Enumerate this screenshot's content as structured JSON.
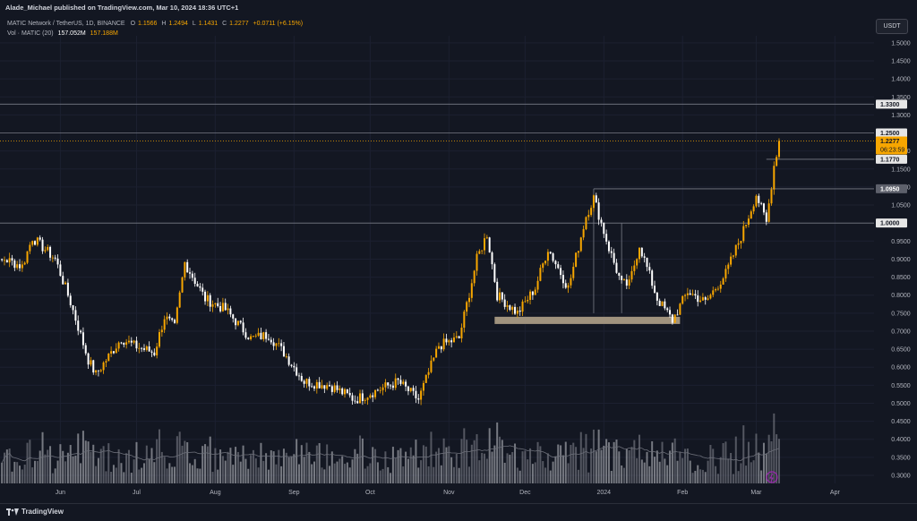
{
  "header": {
    "publisher_text": "Alade_Michael published on TradingView.com, Mar 10, 2024 18:36 UTC+1"
  },
  "legend": {
    "symbol": "MATIC Network / TetherUS, 1D, BINANCE",
    "o_label": "O",
    "o_value": "1.1566",
    "h_label": "H",
    "h_value": "1.2494",
    "l_label": "L",
    "l_value": "1.1431",
    "c_label": "C",
    "c_value": "1.2277",
    "change": "+0.0711 (+6.15%)",
    "vol_label": "Vol · MATIC (20)",
    "vol_value": "157.052M",
    "vol_ma": "157.188M"
  },
  "currency": "USDT",
  "footer": {
    "brand": "TradingView"
  },
  "colors": {
    "background": "#131722",
    "up": "#f7a600",
    "down": "#ffffff",
    "level_line": "#787b86",
    "support_zone": "#a89a84",
    "current_price": "#f7a600"
  },
  "chart_data": {
    "type": "candlestick",
    "y_axis_ticks": [
      "1.5000",
      "1.4500",
      "1.4000",
      "1.3500",
      "1.3000",
      "1.2000",
      "1.1500",
      "1.1000",
      "1.0500",
      "0.9500",
      "0.9000",
      "0.8500",
      "0.8000",
      "0.7500",
      "0.7000",
      "0.6500",
      "0.6000",
      "0.5500",
      "0.5000",
      "0.4500",
      "0.4000",
      "0.3500",
      "0.3000"
    ],
    "x_axis_labels": [
      "Jun",
      "Jul",
      "Aug",
      "Sep",
      "Oct",
      "Nov",
      "Dec",
      "2024",
      "Feb",
      "Mar",
      "Apr"
    ],
    "price_labels": [
      {
        "text": "1.3300",
        "value": 1.33,
        "style": "level"
      },
      {
        "text": "1.2500",
        "value": 1.25,
        "style": "level"
      },
      {
        "text": "1.2277",
        "value": 1.2277,
        "style": "current",
        "countdown": "06:23:59"
      },
      {
        "text": "1.1770",
        "value": 1.177,
        "style": "level"
      },
      {
        "text": "1.0950",
        "value": 1.095,
        "style": "dark"
      },
      {
        "text": "1.0000",
        "value": 1.0,
        "style": "level"
      }
    ],
    "horizontal_levels": [
      1.33,
      1.25,
      1.177,
      1.095,
      1.0
    ],
    "support_zone": {
      "low": 0.72,
      "high": 0.74,
      "from": "Nov 19",
      "to": "Jan 31"
    },
    "waypoints": [
      [
        "May 1",
        0.85
      ],
      [
        "May 10",
        0.9
      ],
      [
        "May 17",
        0.88
      ],
      [
        "May 21",
        0.96
      ],
      [
        "May 30",
        0.9
      ],
      [
        "Jun 5",
        0.78
      ],
      [
        "Jun 12",
        0.62
      ],
      [
        "Jun 15",
        0.58
      ],
      [
        "Jun 25",
        0.68
      ],
      [
        "Jun 30",
        0.66
      ],
      [
        "Jul 8",
        0.64
      ],
      [
        "Jul 12",
        0.74
      ],
      [
        "Jul 16",
        0.71
      ],
      [
        "Jul 20",
        0.89
      ],
      [
        "Jul 28",
        0.79
      ],
      [
        "Aug 5",
        0.76
      ],
      [
        "Aug 15",
        0.68
      ],
      [
        "Aug 22",
        0.69
      ],
      [
        "Aug 28",
        0.64
      ],
      [
        "Sep 5",
        0.56
      ],
      [
        "Sep 15",
        0.55
      ],
      [
        "Sep 25",
        0.51
      ],
      [
        "Oct 5",
        0.54
      ],
      [
        "Oct 12",
        0.56
      ],
      [
        "Oct 20",
        0.51
      ],
      [
        "Oct 28",
        0.66
      ],
      [
        "Nov 5",
        0.68
      ],
      [
        "Nov 12",
        0.9
      ],
      [
        "Nov 16",
        0.97
      ],
      [
        "Nov 20",
        0.8
      ],
      [
        "Nov 28",
        0.75
      ],
      [
        "Dec 5",
        0.82
      ],
      [
        "Dec 10",
        0.93
      ],
      [
        "Dec 18",
        0.82
      ],
      [
        "Dec 25",
        1.02
      ],
      [
        "Dec 28",
        1.07
      ],
      [
        "Jan 3",
        0.93
      ],
      [
        "Jan 8",
        0.83
      ],
      [
        "Jan 11",
        0.83
      ],
      [
        "Jan 15",
        0.94
      ],
      [
        "Jan 22",
        0.79
      ],
      [
        "Jan 28",
        0.73
      ],
      [
        "Feb 3",
        0.81
      ],
      [
        "Feb 10",
        0.78
      ],
      [
        "Feb 18",
        0.86
      ],
      [
        "Feb 25",
        0.98
      ],
      [
        "Mar 1",
        1.08
      ],
      [
        "Mar 5",
        1.0
      ],
      [
        "Mar 8",
        1.16
      ],
      [
        "Mar 10",
        1.2277
      ]
    ]
  }
}
